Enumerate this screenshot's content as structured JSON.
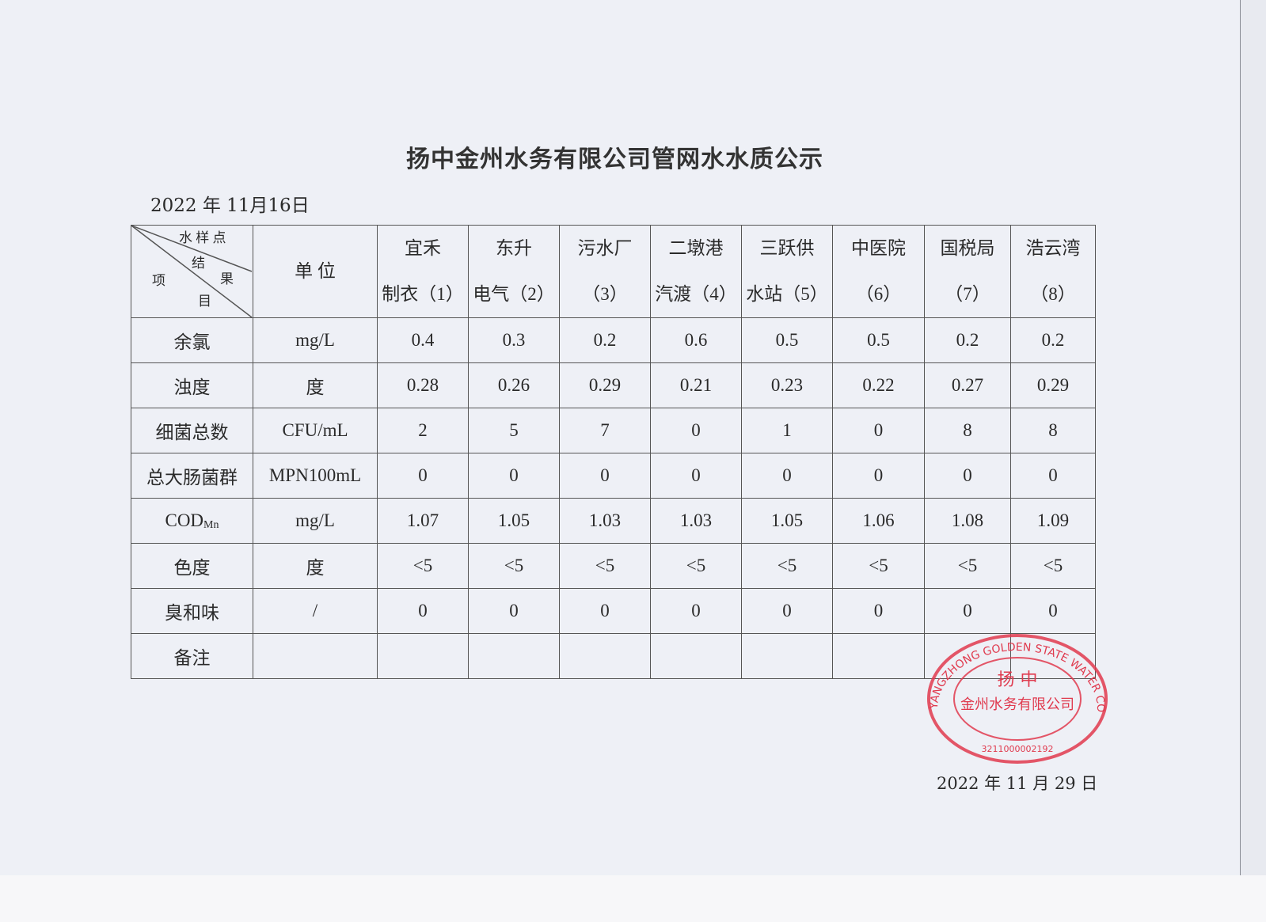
{
  "title": "扬中金州水务有限公司管网水水质公示",
  "report_date": "2022 年 11月16日",
  "header": {
    "corner": {
      "top": "水 样 点",
      "middle_top": "结",
      "middle_right": "果",
      "left": "项",
      "bottom": "目"
    },
    "unit": "单 位",
    "sites": [
      [
        "宜禾",
        "制衣（1）"
      ],
      [
        "东升",
        "电气（2）"
      ],
      [
        "污水厂",
        "（3）"
      ],
      [
        "二墩港",
        "汽渡（4）"
      ],
      [
        "三跃供",
        "水站（5）"
      ],
      [
        "中医院",
        "（6）"
      ],
      [
        "国税局",
        "（7）"
      ],
      [
        "浩云湾",
        "（8）"
      ]
    ]
  },
  "rows": [
    {
      "item": "余氯",
      "unit": "mg/L",
      "values": [
        "0.4",
        "0.3",
        "0.2",
        "0.6",
        "0.5",
        "0.5",
        "0.2",
        "0.2"
      ]
    },
    {
      "item": "浊度",
      "unit": "度",
      "values": [
        "0.28",
        "0.26",
        "0.29",
        "0.21",
        "0.23",
        "0.22",
        "0.27",
        "0.29"
      ]
    },
    {
      "item": "细菌总数",
      "unit": "CFU/mL",
      "values": [
        "2",
        "5",
        "7",
        "0",
        "1",
        "0",
        "8",
        "8"
      ]
    },
    {
      "item": "总大肠菌群",
      "unit": "MPN100mL",
      "values": [
        "0",
        "0",
        "0",
        "0",
        "0",
        "0",
        "0",
        "0"
      ]
    },
    {
      "item": "COD",
      "item_sub": "Mn",
      "unit": "mg/L",
      "values": [
        "1.07",
        "1.05",
        "1.03",
        "1.03",
        "1.05",
        "1.06",
        "1.08",
        "1.09"
      ]
    },
    {
      "item": "色度",
      "unit": "度",
      "values": [
        "<5",
        "<5",
        "<5",
        "<5",
        "<5",
        "<5",
        "<5",
        "<5"
      ]
    },
    {
      "item": "臭和味",
      "unit": "/",
      "values": [
        "0",
        "0",
        "0",
        "0",
        "0",
        "0",
        "0",
        "0"
      ]
    },
    {
      "item": "备注",
      "unit": "",
      "values": [
        "",
        "",
        "",
        "",
        "",
        "",
        "",
        ""
      ]
    }
  ],
  "stamp": {
    "outer_text": "YANGZHONG GOLDEN STATE WATER CO.,LTD.",
    "inner_line1": "扬 中",
    "inner_line2": "金州水务有限公司",
    "number": "3211000002192",
    "color": "#e03a4e"
  },
  "sign_date": "2022 年 11 月 29 日"
}
